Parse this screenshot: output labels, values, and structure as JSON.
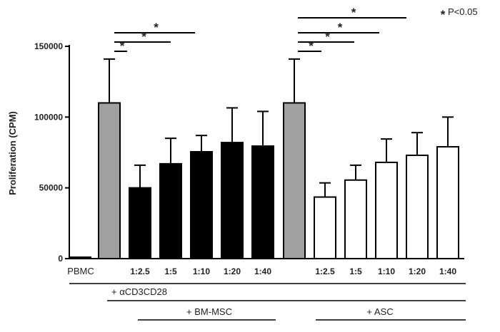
{
  "chart_data": {
    "type": "bar",
    "ylabel": "Proliferation (CPM)",
    "ylim": [
      0,
      150000
    ],
    "yticks": [
      "0",
      "50000",
      "100000",
      "150000"
    ],
    "significance_note": "P<0.05",
    "significance_symbol": "*",
    "colors": {
      "gray": "#a0a0a0",
      "black": "#000000",
      "white": "#ffffff"
    },
    "bars": [
      {
        "label": "PBMC",
        "value": 500,
        "error": 0,
        "fill": "white"
      },
      {
        "label": "",
        "value": 110000,
        "error": 31000,
        "fill": "gray"
      },
      {
        "label": "1:2.5",
        "value": 50000,
        "error": 16000,
        "fill": "black"
      },
      {
        "label": "1:5",
        "value": 67000,
        "error": 18000,
        "fill": "black"
      },
      {
        "label": "1:10",
        "value": 75500,
        "error": 11500,
        "fill": "black"
      },
      {
        "label": "1:20",
        "value": 82000,
        "error": 24500,
        "fill": "black"
      },
      {
        "label": "1:40",
        "value": 79500,
        "error": 24500,
        "fill": "black"
      },
      {
        "label": "",
        "value": 110000,
        "error": 31000,
        "fill": "gray"
      },
      {
        "label": "1:2.5",
        "value": 43500,
        "error": 10000,
        "fill": "white"
      },
      {
        "label": "1:5",
        "value": 55500,
        "error": 10500,
        "fill": "white"
      },
      {
        "label": "1:10",
        "value": 68000,
        "error": 16500,
        "fill": "white"
      },
      {
        "label": "1:20",
        "value": 73000,
        "error": 16000,
        "fill": "white"
      },
      {
        "label": "1:40",
        "value": 79000,
        "error": 21000,
        "fill": "white"
      }
    ],
    "group_labels": [
      {
        "text": "+ αCD3CD28",
        "from": 1,
        "to": 12
      },
      {
        "text": "+ BM-MSC",
        "from": 2,
        "to": 6
      },
      {
        "text": "+ ASC",
        "from": 8,
        "to": 12
      }
    ],
    "comparisons": [
      {
        "from": 1,
        "to": 2,
        "label": "*"
      },
      {
        "from": 1,
        "to": 3,
        "label": "*"
      },
      {
        "from": 1,
        "to": 4,
        "label": "*"
      },
      {
        "from": 7,
        "to": 8,
        "label": "*"
      },
      {
        "from": 7,
        "to": 9,
        "label": "*"
      },
      {
        "from": 7,
        "to": 10,
        "label": "*"
      },
      {
        "from": 7,
        "to": 11,
        "label": "*"
      }
    ]
  }
}
